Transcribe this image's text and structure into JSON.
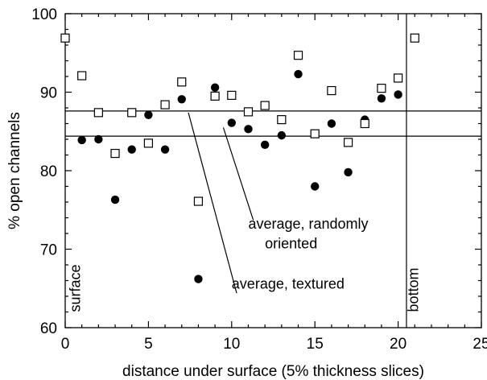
{
  "chart_data": {
    "type": "scatter",
    "title": "",
    "xlabel": "distance under surface (5% thickness slices)",
    "ylabel": "% open channels",
    "xlim": [
      0,
      25
    ],
    "ylim": [
      60,
      100
    ],
    "x_ticks": [
      0,
      5,
      10,
      15,
      20,
      25
    ],
    "y_ticks": [
      60,
      70,
      80,
      90,
      100
    ],
    "grid": false,
    "legend": "none",
    "series": [
      {
        "marker": "filled-circle",
        "color": "#000000",
        "points": [
          {
            "x": 1,
            "y": 83.9
          },
          {
            "x": 2,
            "y": 84.0
          },
          {
            "x": 3,
            "y": 76.3
          },
          {
            "x": 4,
            "y": 82.7
          },
          {
            "x": 5,
            "y": 87.1
          },
          {
            "x": 6,
            "y": 82.7
          },
          {
            "x": 7,
            "y": 89.1
          },
          {
            "x": 8,
            "y": 66.2
          },
          {
            "x": 9,
            "y": 90.6
          },
          {
            "x": 10,
            "y": 86.1
          },
          {
            "x": 11,
            "y": 85.3
          },
          {
            "x": 12,
            "y": 83.3
          },
          {
            "x": 13,
            "y": 84.5
          },
          {
            "x": 14,
            "y": 92.3
          },
          {
            "x": 15,
            "y": 78.0
          },
          {
            "x": 16,
            "y": 86.0
          },
          {
            "x": 17,
            "y": 79.8
          },
          {
            "x": 18,
            "y": 86.5
          },
          {
            "x": 19,
            "y": 89.2
          },
          {
            "x": 20,
            "y": 89.7
          }
        ]
      },
      {
        "marker": "open-square",
        "color": "#000000",
        "points": [
          {
            "x": 0,
            "y": 96.9
          },
          {
            "x": 1,
            "y": 92.1
          },
          {
            "x": 2,
            "y": 87.4
          },
          {
            "x": 3,
            "y": 82.2
          },
          {
            "x": 4,
            "y": 87.4
          },
          {
            "x": 5,
            "y": 83.5
          },
          {
            "x": 6,
            "y": 88.4
          },
          {
            "x": 7,
            "y": 91.3
          },
          {
            "x": 8,
            "y": 76.1
          },
          {
            "x": 9,
            "y": 89.5
          },
          {
            "x": 10,
            "y": 89.6
          },
          {
            "x": 11,
            "y": 87.5
          },
          {
            "x": 12,
            "y": 88.3
          },
          {
            "x": 13,
            "y": 86.5
          },
          {
            "x": 14,
            "y": 94.7
          },
          {
            "x": 15,
            "y": 84.7
          },
          {
            "x": 16,
            "y": 90.2
          },
          {
            "x": 17,
            "y": 83.6
          },
          {
            "x": 18,
            "y": 86.0
          },
          {
            "x": 19,
            "y": 90.5
          },
          {
            "x": 20,
            "y": 91.8
          },
          {
            "x": 21,
            "y": 96.9
          }
        ]
      }
    ],
    "reference_lines": [
      {
        "orientation": "horizontal",
        "y": 87.6
      },
      {
        "orientation": "horizontal",
        "y": 84.4
      },
      {
        "orientation": "vertical",
        "x": 20.5
      }
    ],
    "annotations": [
      {
        "text": "average, randomly",
        "x": 11.0,
        "y": 72.6
      },
      {
        "text": "oriented",
        "x": 12.0,
        "y": 70.1
      },
      {
        "text": "average, textured",
        "x": 10.0,
        "y": 65.0
      },
      {
        "text": "surface",
        "x": 0.9,
        "y": 62.0,
        "rotation": -90
      },
      {
        "text": "bottom",
        "x": 21.2,
        "y": 62.0,
        "rotation": -90
      }
    ],
    "leader_lines": [
      {
        "from": [
          9.5,
          85.5
        ],
        "to": [
          11.3,
          73.7
        ]
      },
      {
        "from": [
          7.4,
          87.4
        ],
        "to": [
          10.3,
          64.4
        ]
      }
    ]
  }
}
